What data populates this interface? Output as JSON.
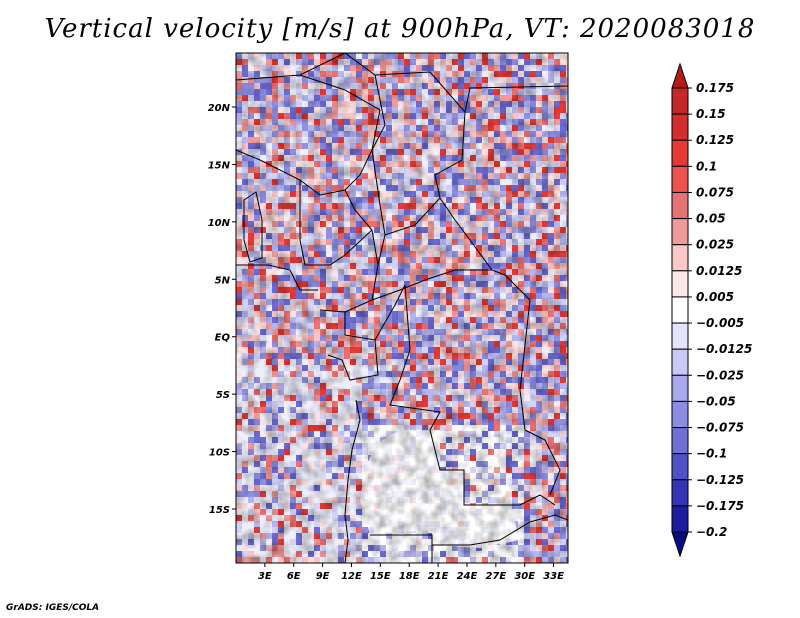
{
  "chart_data": {
    "type": "heatmap",
    "title": "Vertical velocity [m/s] at 900hPa, VT: 2020083018",
    "xlabel": "",
    "ylabel": "",
    "x_ticks": [
      "3E",
      "6E",
      "9E",
      "12E",
      "15E",
      "18E",
      "21E",
      "24E",
      "27E",
      "30E",
      "33E"
    ],
    "x_tick_values": [
      3,
      6,
      9,
      12,
      15,
      18,
      21,
      24,
      27,
      30,
      33
    ],
    "y_ticks": [
      "20N",
      "15N",
      "10N",
      "5N",
      "EQ",
      "5S",
      "10S",
      "15S"
    ],
    "y_tick_values": [
      20,
      15,
      10,
      5,
      0,
      -5,
      -10,
      -15
    ],
    "xlim": [
      0,
      34.5
    ],
    "ylim": [
      -19.7,
      24.7
    ],
    "colorbar": {
      "levels": [
        "0.175",
        "0.15",
        "0.125",
        "0.1",
        "0.075",
        "0.05",
        "0.025",
        "0.0125",
        "0.005",
        "−0.005",
        "−0.0125",
        "−0.025",
        "−0.05",
        "−0.075",
        "−0.1",
        "−0.125",
        "−0.175",
        "−0.2"
      ],
      "colors": [
        "#b71c1c",
        "#c62828",
        "#d32f2f",
        "#e53935",
        "#ef5350",
        "#e57373",
        "#ef9a9a",
        "#f8c8c8",
        "#fde7e7",
        "#ffffff",
        "#e3e3fb",
        "#c8c8f5",
        "#a8a8ec",
        "#8c8ce2",
        "#6f6fd6",
        "#5252c8",
        "#3434b6",
        "#1c1ca0",
        "#0a0a82"
      ]
    },
    "annotation": "GrADS: IGES/COLA"
  }
}
